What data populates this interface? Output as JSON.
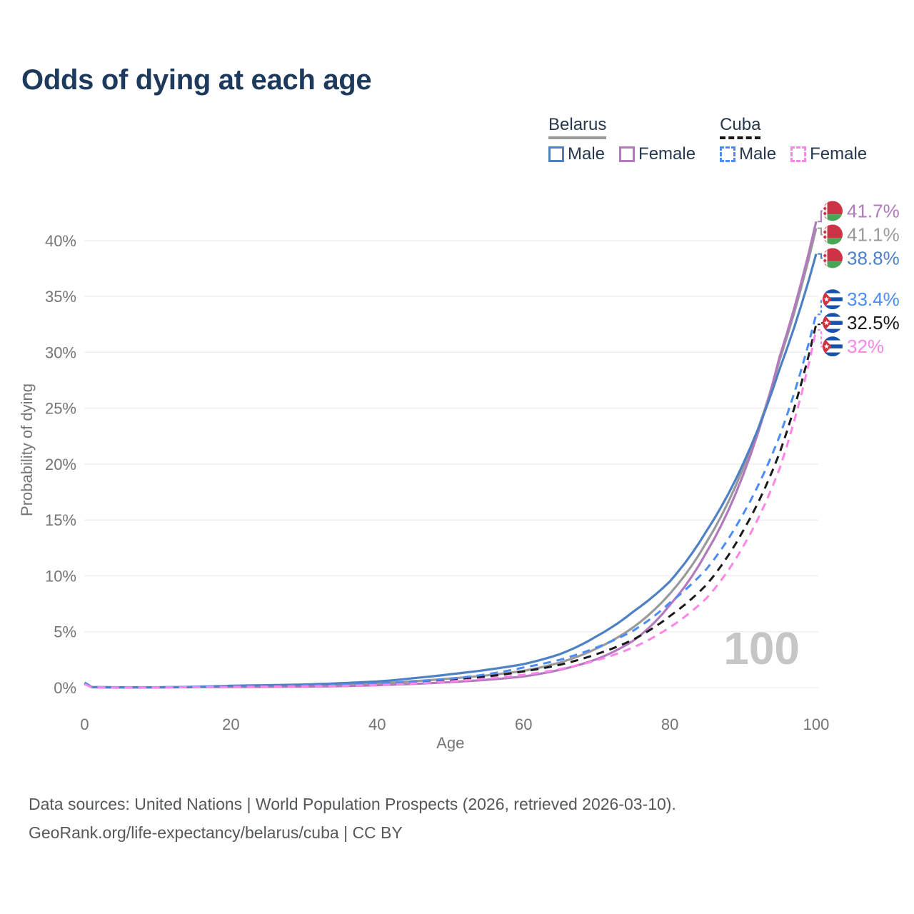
{
  "title": "Odds of dying at each age",
  "watermark": "100",
  "colors": {
    "title": "#1d3a5c",
    "legendtext": "#26374e",
    "axis": "#757575",
    "grid": "#ededed",
    "watermark": "#c6c6c6",
    "footer": "#55585a"
  },
  "legend": {
    "groups": [
      {
        "country": "Belarus",
        "style": "solid",
        "underline_color": "#9a9a9a",
        "items": [
          {
            "label": "Male",
            "color": "#4e80c4"
          },
          {
            "label": "Female",
            "color": "#b279bd"
          }
        ]
      },
      {
        "country": "Cuba",
        "style": "dashed",
        "underline_color": "#161616",
        "items": [
          {
            "label": "Male",
            "color": "#4b8df5"
          },
          {
            "label": "Female",
            "color": "#fc85e8"
          }
        ]
      }
    ]
  },
  "axes": {
    "y_title": "Probability of dying",
    "x_title": "Age",
    "y_ticks": [
      "0%",
      "5%",
      "10%",
      "15%",
      "20%",
      "25%",
      "30%",
      "35%",
      "40%"
    ],
    "y_tick_values": [
      0,
      5,
      10,
      15,
      20,
      25,
      30,
      35,
      40
    ],
    "x_ticks": [
      0,
      20,
      40,
      60,
      80,
      100
    ]
  },
  "footer": {
    "line1": "Data sources: United Nations | World Population Prospects (2026, retrieved 2026-03-10).",
    "line2": "GeoRank.org/life-expectancy/belarus/cuba | CC BY"
  },
  "chart_data": {
    "type": "line",
    "xlabel": "Age",
    "ylabel": "Probability of dying",
    "x_range": [
      0,
      100
    ],
    "y_range_percent": [
      0,
      43
    ],
    "grid": "horizontal",
    "ages": [
      0,
      1,
      5,
      10,
      15,
      20,
      25,
      30,
      35,
      40,
      45,
      50,
      55,
      60,
      65,
      70,
      75,
      80,
      85,
      90,
      95,
      100
    ],
    "series": [
      {
        "id": "belarus-both",
        "name": "Belarus Both sexes",
        "country": "Belarus",
        "sex": "both",
        "color": "#9a9a9a",
        "dash": "solid",
        "end_label": "41.1%",
        "values": [
          0.4,
          0.04,
          0.025,
          0.025,
          0.06,
          0.11,
          0.14,
          0.18,
          0.26,
          0.38,
          0.58,
          0.82,
          1.1,
          1.5,
          2.25,
          3.5,
          5.4,
          8.4,
          13.0,
          19.6,
          29.3,
          41.1
        ]
      },
      {
        "id": "belarus-female",
        "name": "Belarus Female",
        "country": "Belarus",
        "sex": "female",
        "color": "#b279bd",
        "dash": "solid",
        "end_label": "41.7%",
        "values": [
          0.35,
          0.035,
          0.02,
          0.02,
          0.04,
          0.055,
          0.07,
          0.09,
          0.14,
          0.22,
          0.34,
          0.5,
          0.7,
          1.0,
          1.6,
          2.55,
          4.2,
          7.4,
          12.1,
          19.0,
          29.6,
          41.7
        ]
      },
      {
        "id": "belarus-male",
        "name": "Belarus Male",
        "country": "Belarus",
        "sex": "male",
        "color": "#4e80c4",
        "dash": "solid",
        "end_label": "38.8%",
        "values": [
          0.45,
          0.05,
          0.03,
          0.03,
          0.08,
          0.17,
          0.22,
          0.28,
          0.4,
          0.55,
          0.85,
          1.2,
          1.6,
          2.1,
          3.0,
          4.6,
          6.8,
          9.5,
          14.0,
          20.0,
          28.5,
          38.8
        ]
      },
      {
        "id": "cuba-both",
        "name": "Cuba Both sexes",
        "country": "Cuba",
        "sex": "both",
        "color": "#1a1a1a",
        "dash": "dashed",
        "end_label": "32.5%",
        "values": [
          0.35,
          0.03,
          0.02,
          0.025,
          0.055,
          0.09,
          0.12,
          0.15,
          0.21,
          0.3,
          0.46,
          0.68,
          1.0,
          1.45,
          2.05,
          3.0,
          4.3,
          6.4,
          9.2,
          14.0,
          21.0,
          32.5
        ]
      },
      {
        "id": "cuba-male",
        "name": "Cuba Male",
        "country": "Cuba",
        "sex": "male",
        "color": "#4b8df5",
        "dash": "dashed",
        "end_label": "33.4%",
        "values": [
          0.4,
          0.035,
          0.025,
          0.03,
          0.07,
          0.12,
          0.15,
          0.19,
          0.26,
          0.36,
          0.55,
          0.8,
          1.2,
          1.8,
          2.5,
          3.6,
          5.1,
          7.6,
          10.6,
          15.5,
          22.5,
          33.4
        ]
      },
      {
        "id": "cuba-female",
        "name": "Cuba Female",
        "country": "Cuba",
        "sex": "female",
        "color": "#fc85e8",
        "dash": "dashed",
        "end_label": "32%",
        "values": [
          0.3,
          0.027,
          0.018,
          0.02,
          0.045,
          0.065,
          0.085,
          0.11,
          0.16,
          0.24,
          0.37,
          0.56,
          0.82,
          1.15,
          1.65,
          2.45,
          3.6,
          5.4,
          8.0,
          12.6,
          19.6,
          32.0
        ]
      }
    ],
    "flag_colors": {
      "belarus_red": "#cc3344",
      "belarus_green": "#4aa657",
      "cuba_blue": "#1952ad",
      "cuba_red": "#d03340",
      "cuba_white": "#ffffff"
    }
  }
}
